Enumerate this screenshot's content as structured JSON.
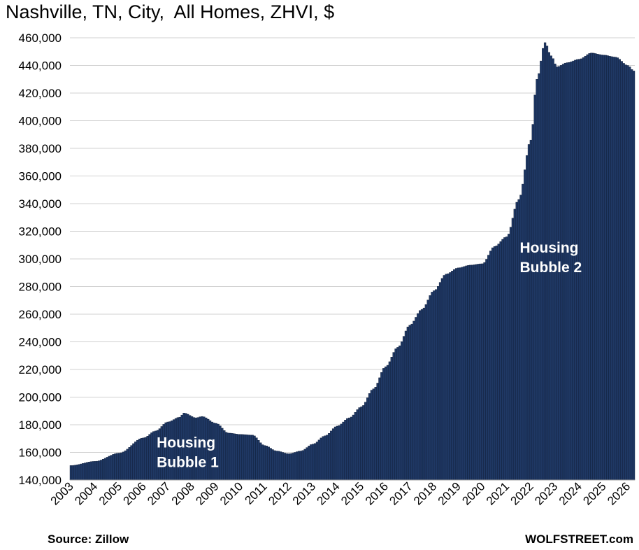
{
  "chart_data": {
    "type": "bar",
    "title": "Nashville, TN, City,  All Homes, ZHVI, $",
    "ylim": [
      140000,
      460000
    ],
    "y_ticks": [
      "140,000",
      "160,000",
      "180,000",
      "200,000",
      "220,000",
      "240,000",
      "260,000",
      "280,000",
      "300,000",
      "320,000",
      "340,000",
      "360,000",
      "380,000",
      "400,000",
      "420,000",
      "440,000",
      "460,000"
    ],
    "x_ticks": [
      "2003",
      "2004",
      "2005",
      "2006",
      "2007",
      "2008",
      "2009",
      "2010",
      "2011",
      "2012",
      "2013",
      "2014",
      "2015",
      "2016",
      "2017",
      "2018",
      "2019",
      "2020",
      "2021",
      "2022",
      "2023",
      "2024",
      "2025",
      "2026"
    ],
    "frequency": "monthly",
    "start": "2003-01",
    "grid": "horizontal",
    "bar_color": "#1f3864",
    "anchors": [
      [
        "2003-01",
        150500
      ],
      [
        "2004-01",
        153500
      ],
      [
        "2005-01",
        159500
      ],
      [
        "2006-01",
        170500
      ],
      [
        "2006-07",
        175500
      ],
      [
        "2007-01",
        182000
      ],
      [
        "2007-07",
        185500
      ],
      [
        "2007-09",
        188500
      ],
      [
        "2008-03",
        185000
      ],
      [
        "2008-06",
        186000
      ],
      [
        "2009-01",
        181000
      ],
      [
        "2009-07",
        174000
      ],
      [
        "2010-01",
        173000
      ],
      [
        "2010-07",
        172500
      ],
      [
        "2011-01",
        165000
      ],
      [
        "2011-07",
        161000
      ],
      [
        "2012-01",
        159000
      ],
      [
        "2012-07",
        161000
      ],
      [
        "2013-01",
        166000
      ],
      [
        "2013-07",
        172000
      ],
      [
        "2014-01",
        179000
      ],
      [
        "2014-07",
        185000
      ],
      [
        "2015-01",
        193000
      ],
      [
        "2015-07",
        206000
      ],
      [
        "2016-01",
        222000
      ],
      [
        "2016-07",
        236000
      ],
      [
        "2017-01",
        252000
      ],
      [
        "2017-07",
        263500
      ],
      [
        "2018-01",
        277000
      ],
      [
        "2018-07",
        289000
      ],
      [
        "2019-01",
        293500
      ],
      [
        "2019-07",
        295500
      ],
      [
        "2020-01",
        296500
      ],
      [
        "2020-07",
        309000
      ],
      [
        "2021-01",
        316000
      ],
      [
        "2021-07",
        343000
      ],
      [
        "2022-01",
        386000
      ],
      [
        "2022-04",
        430000
      ],
      [
        "2022-08",
        456500
      ],
      [
        "2022-11",
        447000
      ],
      [
        "2023-02",
        439000
      ],
      [
        "2023-07",
        442000
      ],
      [
        "2024-01",
        444500
      ],
      [
        "2024-07",
        449000
      ],
      [
        "2025-01",
        447500
      ],
      [
        "2025-07",
        446000
      ],
      [
        "2026-01",
        440000
      ],
      [
        "2026-04",
        436000
      ]
    ],
    "annotations": [
      {
        "lines": [
          "Housing",
          "Bubble 1"
        ],
        "at_date": "2006-08",
        "at_value": 163500
      },
      {
        "lines": [
          "Housing",
          "Bubble 2"
        ],
        "at_date": "2021-08",
        "at_value": 304500
      }
    ]
  },
  "footer": {
    "source": "Source: Zillow",
    "brand": "WOLFSTREET.com"
  }
}
